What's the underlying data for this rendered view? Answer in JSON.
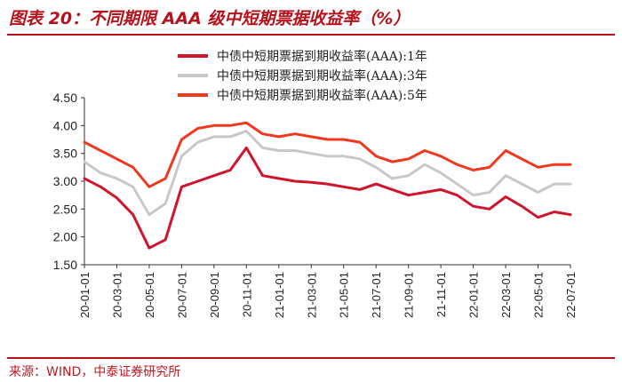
{
  "title": "图表 20：不同期限 AAA 级中短期票据收益率（%）",
  "source": "来源：WIND，中泰证券研究所",
  "colors": {
    "accent": "#b5121b",
    "series": [
      "#d0142c",
      "#c8c8c8",
      "#f0381e"
    ]
  },
  "chart_data": {
    "type": "line",
    "title": "",
    "xlabel": "",
    "ylabel": "",
    "ylim": [
      1.5,
      4.5
    ],
    "yticks": [
      "1.50",
      "2.00",
      "2.50",
      "3.00",
      "3.50",
      "4.00",
      "4.50"
    ],
    "xticks": [
      "20-01-01",
      "20-03-01",
      "20-05-01",
      "20-07-01",
      "20-09-01",
      "20-11-01",
      "21-01-01",
      "21-03-01",
      "21-05-01",
      "21-07-01",
      "21-09-01",
      "21-11-01",
      "22-01-01",
      "22-03-01",
      "22-05-01",
      "22-07-01"
    ],
    "legend_position": "top-center",
    "grid": false,
    "x": [
      "20-01",
      "20-02",
      "20-03",
      "20-04",
      "20-05",
      "20-06",
      "20-07",
      "20-08",
      "20-09",
      "20-10",
      "20-11",
      "20-12",
      "21-01",
      "21-02",
      "21-03",
      "21-04",
      "21-05",
      "21-06",
      "21-07",
      "21-08",
      "21-09",
      "21-10",
      "21-11",
      "21-12",
      "22-01",
      "22-02",
      "22-03",
      "22-04",
      "22-05",
      "22-06",
      "22-07"
    ],
    "series": [
      {
        "name": "中债中短期票据到期收益率(AAA):1年",
        "color": "#d0142c",
        "values": [
          3.05,
          2.9,
          2.7,
          2.4,
          1.8,
          1.95,
          2.9,
          3.0,
          3.1,
          3.2,
          3.6,
          3.1,
          3.05,
          3.0,
          2.98,
          2.95,
          2.9,
          2.85,
          2.95,
          2.85,
          2.75,
          2.8,
          2.85,
          2.75,
          2.55,
          2.5,
          2.72,
          2.55,
          2.35,
          2.45,
          2.4
        ]
      },
      {
        "name": "中债中短期票据到期收益率(AAA):3年",
        "color": "#c8c8c8",
        "values": [
          3.35,
          3.15,
          3.05,
          2.9,
          2.4,
          2.6,
          3.45,
          3.7,
          3.8,
          3.8,
          3.9,
          3.6,
          3.55,
          3.55,
          3.5,
          3.45,
          3.45,
          3.4,
          3.25,
          3.05,
          3.1,
          3.3,
          3.15,
          2.95,
          2.75,
          2.8,
          3.1,
          2.95,
          2.8,
          2.95,
          2.95
        ]
      },
      {
        "name": "中债中短期票据到期收益率(AAA):5年",
        "color": "#f0381e",
        "values": [
          3.7,
          3.55,
          3.4,
          3.25,
          2.9,
          3.05,
          3.75,
          3.95,
          4.0,
          4.0,
          4.05,
          3.85,
          3.8,
          3.85,
          3.8,
          3.75,
          3.75,
          3.7,
          3.45,
          3.35,
          3.4,
          3.55,
          3.45,
          3.3,
          3.2,
          3.25,
          3.55,
          3.4,
          3.25,
          3.3,
          3.3
        ]
      }
    ]
  }
}
